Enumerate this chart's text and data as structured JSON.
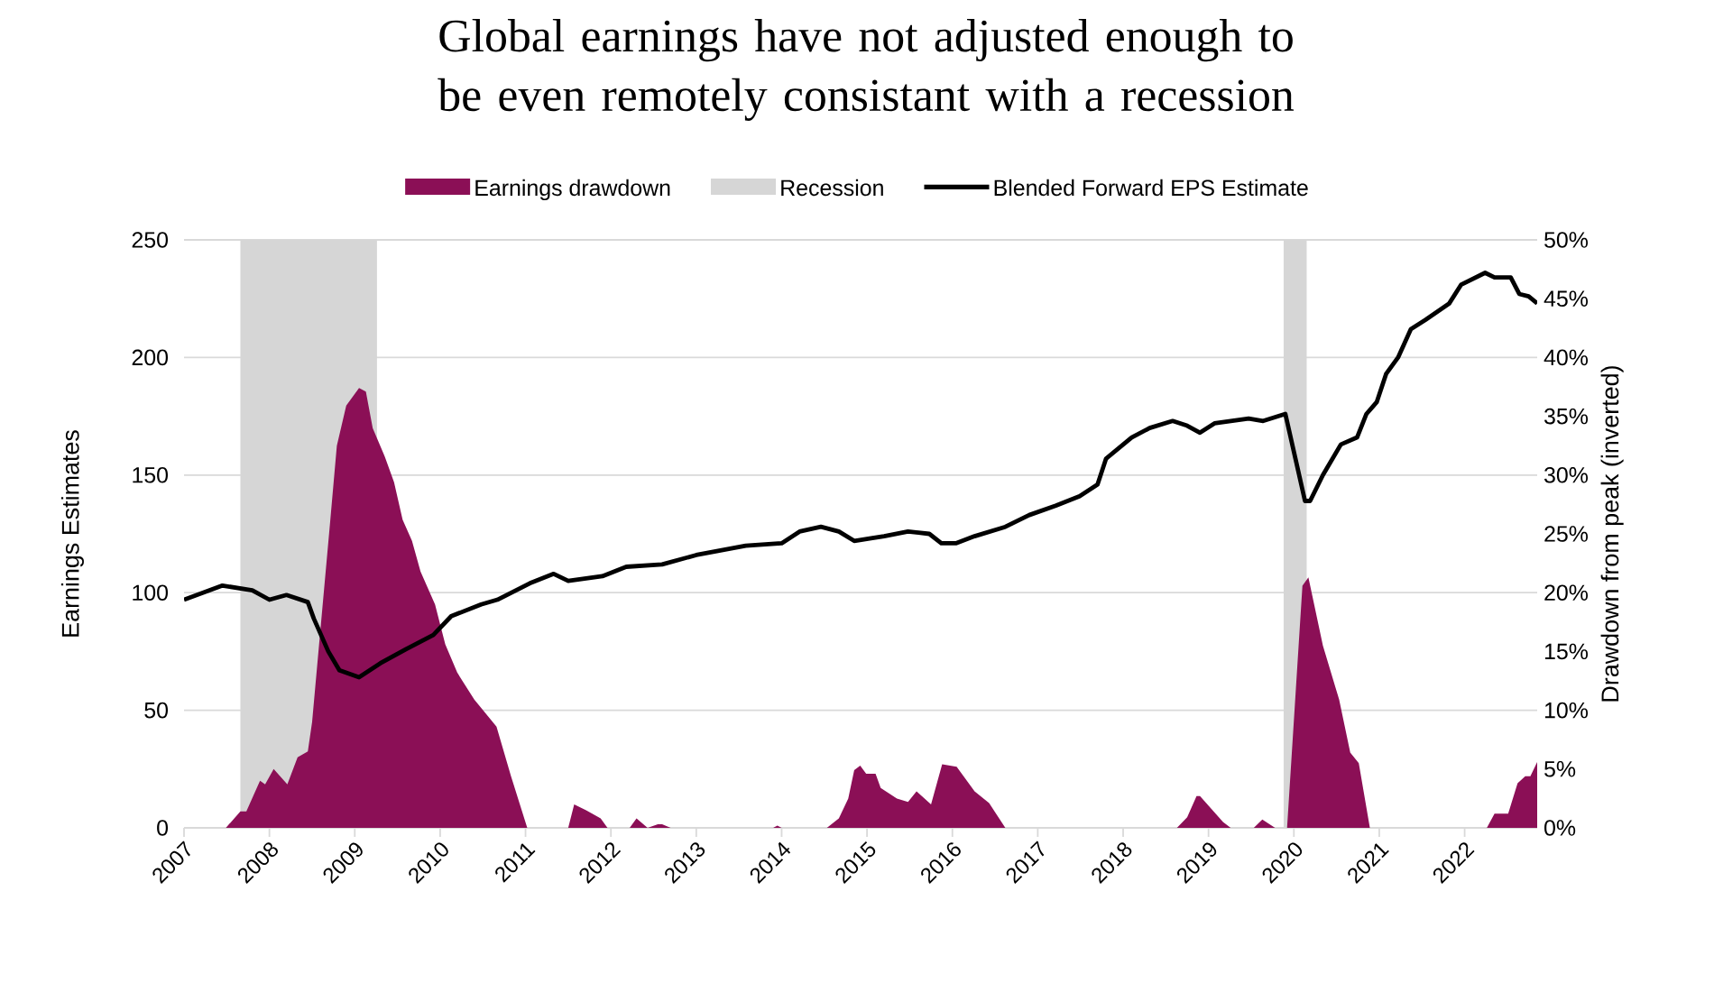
{
  "chart_data": {
    "type": "line",
    "title": "Global earnings have not adjusted enough to be even remotely consistant with a recession",
    "ylabel": "Earnings Estimates",
    "y2label": "Drawdown from peak (inverted)",
    "xlim": [
      2007,
      2022.85
    ],
    "xticks": [
      2007,
      2008,
      2009,
      2010,
      2011,
      2012,
      2013,
      2014,
      2015,
      2016,
      2017,
      2018,
      2019,
      2020,
      2021,
      2022
    ],
    "ylim": [
      0,
      250
    ],
    "yticks": [
      0,
      50,
      100,
      150,
      200,
      250
    ],
    "y2lim": [
      0,
      50
    ],
    "y2ticks": [
      {
        "value": 0,
        "label": "0%"
      },
      {
        "value": 5,
        "label": "5%"
      },
      {
        "value": 10,
        "label": "10%"
      },
      {
        "value": 15,
        "label": "15%"
      },
      {
        "value": 20,
        "label": "20%"
      },
      {
        "value": 25,
        "label": "25%"
      },
      {
        "value": 30,
        "label": "30%"
      },
      {
        "value": 35,
        "label": "35%"
      },
      {
        "value": 40,
        "label": "40%"
      },
      {
        "value": 45,
        "label": "45%"
      },
      {
        "value": 50,
        "label": "50%"
      }
    ],
    "grid": "y",
    "legend": "top",
    "bands": [
      {
        "axis": "x",
        "from": 2007.66,
        "to": 2009.26,
        "label": "Recession",
        "color": "#d6d6d6"
      },
      {
        "axis": "x",
        "from": 2019.88,
        "to": 2020.15,
        "color": "#d6d6d6"
      }
    ],
    "series": [
      {
        "name": "Earnings drawdown",
        "type": "area",
        "axis": "y2",
        "color": "#8b0f56",
        "x": [
          2007.49,
          2007.66,
          2007.73,
          2007.89,
          2007.95,
          2008.05,
          2008.21,
          2008.33,
          2008.45,
          2008.5,
          2008.71,
          2008.79,
          2008.9,
          2009.05,
          2009.13,
          2009.21,
          2009.35,
          2009.46,
          2009.56,
          2009.67,
          2009.77,
          2009.94,
          2010.06,
          2010.2,
          2010.4,
          2010.66,
          2010.83,
          2011.02,
          2011.5,
          2011.57,
          2011.71,
          2011.88,
          2011.96,
          2012.22,
          2012.3,
          2012.43,
          2012.55,
          2012.6,
          2012.7,
          2013.9,
          2013.95,
          2014.0,
          2014.53,
          2014.67,
          2014.78,
          2014.85,
          2014.92,
          2014.99,
          2015.1,
          2015.16,
          2015.35,
          2015.48,
          2015.58,
          2015.75,
          2015.88,
          2016.05,
          2016.26,
          2016.43,
          2016.62,
          2018.63,
          2018.75,
          2018.86,
          2018.9,
          2019.17,
          2019.26,
          2019.53,
          2019.63,
          2019.78,
          2019.92,
          2020.1,
          2020.17,
          2020.34,
          2020.53,
          2020.66,
          2020.76,
          2020.89,
          2022.26,
          2022.35,
          2022.51,
          2022.62,
          2022.71,
          2022.77,
          2022.85
        ],
        "values": [
          0,
          1.4,
          1.4,
          4.0,
          3.7,
          5.0,
          3.7,
          6.0,
          6.5,
          9,
          25.9,
          32.5,
          35.9,
          37.4,
          37.1,
          34.0,
          31.6,
          29.4,
          26.2,
          24.4,
          21.8,
          19.0,
          15.6,
          13.2,
          10.9,
          8.6,
          4.4,
          0,
          0,
          2.0,
          1.5,
          0.8,
          0,
          0,
          0.8,
          0,
          0.3,
          0.3,
          0,
          0,
          0.2,
          0,
          0,
          0.8,
          2.5,
          4.9,
          5.3,
          4.6,
          4.6,
          3.4,
          2.5,
          2.2,
          3.1,
          2.0,
          5.4,
          5.2,
          3.1,
          2.1,
          0,
          0,
          0.9,
          2.7,
          2.7,
          0.5,
          0,
          0,
          0.7,
          0,
          0,
          20.6,
          21.3,
          15.5,
          10.9,
          6.4,
          5.5,
          0,
          0,
          1.2,
          1.2,
          3.8,
          4.4,
          4.4,
          5.6
        ]
      },
      {
        "name": "Blended Forward EPS Estimate",
        "color": "#000000",
        "x": [
          2007.0,
          2007.45,
          2007.8,
          2008.0,
          2008.2,
          2008.45,
          2008.52,
          2008.69,
          2008.82,
          2009.05,
          2009.3,
          2009.6,
          2009.92,
          2010.13,
          2010.48,
          2010.67,
          2011.05,
          2011.33,
          2011.5,
          2011.9,
          2012.18,
          2012.6,
          2013.0,
          2013.58,
          2014.0,
          2014.21,
          2014.46,
          2014.67,
          2014.85,
          2015.03,
          2015.2,
          2015.48,
          2015.73,
          2015.87,
          2016.04,
          2016.26,
          2016.62,
          2016.9,
          2017.21,
          2017.49,
          2017.7,
          2017.8,
          2018.1,
          2018.31,
          2018.58,
          2018.75,
          2018.9,
          2019.07,
          2019.47,
          2019.64,
          2019.9,
          2020.13,
          2020.19,
          2020.34,
          2020.55,
          2020.74,
          2020.85,
          2020.97,
          2021.08,
          2021.22,
          2021.37,
          2021.54,
          2021.82,
          2021.96,
          2022.24,
          2022.35,
          2022.54,
          2022.64,
          2022.75,
          2022.85
        ],
        "values": [
          97,
          103,
          101,
          97,
          99,
          96,
          89,
          75,
          67,
          64,
          70,
          76,
          82,
          90,
          95,
          97,
          104,
          108,
          105,
          107,
          111,
          112,
          116,
          120,
          121,
          126,
          128,
          126,
          122,
          123,
          124,
          126,
          125,
          121,
          121,
          124,
          128,
          133,
          137,
          141,
          146,
          157,
          166,
          170,
          173,
          171,
          168,
          172,
          174,
          173,
          176,
          139,
          139,
          150,
          163,
          166,
          176,
          181,
          193,
          200,
          212,
          216,
          223,
          231,
          236,
          234,
          234,
          227,
          226,
          223
        ]
      }
    ]
  }
}
